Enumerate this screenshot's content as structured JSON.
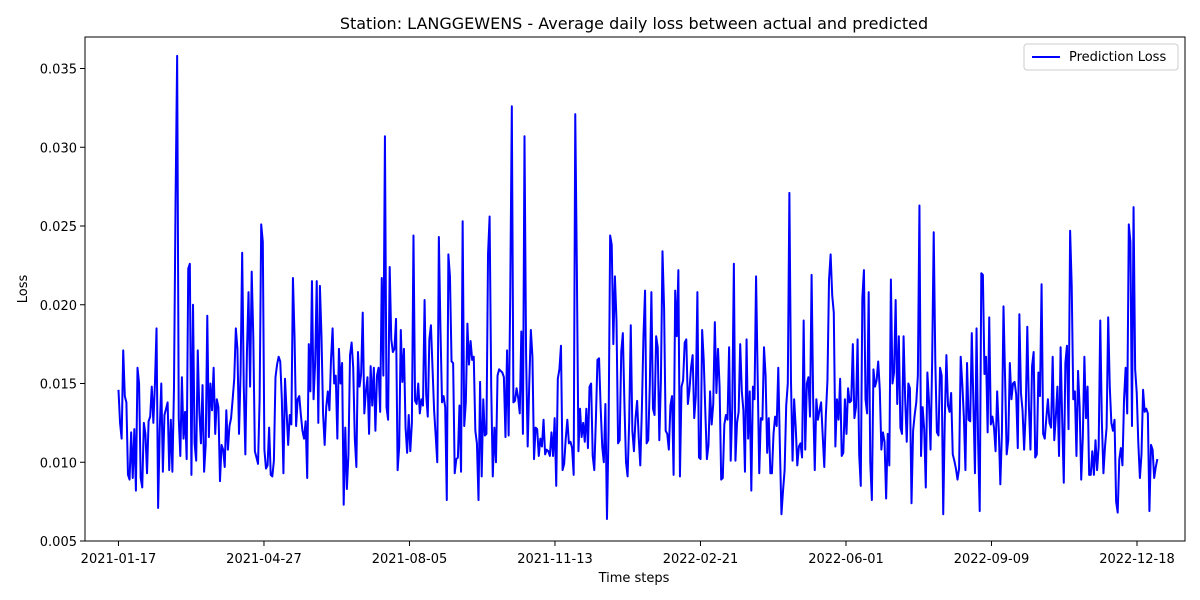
{
  "chart_data": {
    "type": "line",
    "title": "Station: LANGGEWENS - Average daily loss between actual and predicted",
    "xlabel": "Time steps",
    "ylabel": "Loss",
    "x_start": "2021-01-17",
    "x_end": "2023-01-01",
    "xlim": [
      "2020-12-25",
      "2023-01-20"
    ],
    "ylim": [
      0.005,
      0.037
    ],
    "x_ticks": [
      "2021-01-17",
      "2021-04-27",
      "2021-08-05",
      "2021-11-13",
      "2022-02-21",
      "2022-06-01",
      "2022-09-09",
      "2022-12-18"
    ],
    "y_ticks": [
      "0.005",
      "0.010",
      "0.015",
      "0.020",
      "0.025",
      "0.030",
      "0.035"
    ],
    "legend_position": "top-right",
    "grid": false,
    "series": [
      {
        "name": "Prediction Loss",
        "color": "#0000ff",
        "values": [
          0.0146,
          0.0125,
          0.0115,
          0.0171,
          0.0142,
          0.0138,
          0.0092,
          0.0089,
          0.0119,
          0.009,
          0.0121,
          0.0082,
          0.016,
          0.015,
          0.009,
          0.0084,
          0.0125,
          0.0118,
          0.0093,
          0.0126,
          0.0129,
          0.0148,
          0.0125,
          0.015,
          0.0185,
          0.0071,
          0.012,
          0.015,
          0.0094,
          0.013,
          0.0134,
          0.0138,
          0.0095,
          0.0127,
          0.0094,
          0.0147,
          0.0266,
          0.0358,
          0.0128,
          0.0104,
          0.0154,
          0.0115,
          0.0132,
          0.0102,
          0.0223,
          0.0226,
          0.0092,
          0.02,
          0.0112,
          0.0101,
          0.0171,
          0.0132,
          0.0112,
          0.0149,
          0.0094,
          0.0111,
          0.0193,
          0.0116,
          0.015,
          0.0133,
          0.016,
          0.0118,
          0.014,
          0.0135,
          0.0088,
          0.0111,
          0.0108,
          0.0097,
          0.0133,
          0.0108,
          0.0123,
          0.0128,
          0.014,
          0.0153,
          0.0185,
          0.0172,
          0.0118,
          0.0157,
          0.0233,
          0.0148,
          0.0105,
          0.017,
          0.0208,
          0.0148,
          0.0221,
          0.018,
          0.0107,
          0.0103,
          0.0099,
          0.014,
          0.0251,
          0.024,
          0.0108,
          0.0096,
          0.0098,
          0.0122,
          0.0092,
          0.0091,
          0.0101,
          0.0154,
          0.0162,
          0.0167,
          0.0164,
          0.014,
          0.0093,
          0.0153,
          0.0132,
          0.0111,
          0.013,
          0.0124,
          0.0217,
          0.018,
          0.0123,
          0.014,
          0.0142,
          0.013,
          0.012,
          0.0115,
          0.0126,
          0.009,
          0.0175,
          0.0145,
          0.0215,
          0.014,
          0.0163,
          0.0215,
          0.0125,
          0.0212,
          0.018,
          0.0131,
          0.0111,
          0.0135,
          0.0145,
          0.0133,
          0.0165,
          0.0185,
          0.015,
          0.0155,
          0.0115,
          0.0172,
          0.015,
          0.0163,
          0.0073,
          0.0122,
          0.0083,
          0.0105,
          0.0168,
          0.0176,
          0.016,
          0.0115,
          0.0097,
          0.017,
          0.0148,
          0.0156,
          0.0195,
          0.0131,
          0.0145,
          0.0154,
          0.0118,
          0.0161,
          0.0136,
          0.016,
          0.012,
          0.0155,
          0.016,
          0.0132,
          0.0217,
          0.0155,
          0.0307,
          0.0135,
          0.0127,
          0.0224,
          0.0178,
          0.017,
          0.0172,
          0.0191,
          0.0095,
          0.011,
          0.0184,
          0.0151,
          0.0172,
          0.0122,
          0.0106,
          0.013,
          0.0107,
          0.0125,
          0.0244,
          0.0139,
          0.0137,
          0.015,
          0.0131,
          0.014,
          0.0136,
          0.0203,
          0.0143,
          0.0129,
          0.0178,
          0.0187,
          0.016,
          0.0133,
          0.0117,
          0.01,
          0.0243,
          0.0185,
          0.0138,
          0.0142,
          0.0135,
          0.0076,
          0.0232,
          0.0218,
          0.0164,
          0.0163,
          0.0093,
          0.0102,
          0.0103,
          0.0136,
          0.0094,
          0.0253,
          0.0123,
          0.0138,
          0.0188,
          0.0162,
          0.0177,
          0.0165,
          0.0167,
          0.012,
          0.0112,
          0.0076,
          0.0151,
          0.0091,
          0.014,
          0.0117,
          0.0118,
          0.0232,
          0.0256,
          0.0148,
          0.0091,
          0.0122,
          0.01,
          0.0155,
          0.0159,
          0.0158,
          0.0157,
          0.0154,
          0.0116,
          0.0171,
          0.0117,
          0.0206,
          0.0326,
          0.0138,
          0.0139,
          0.0147,
          0.0141,
          0.0131,
          0.0183,
          0.0118,
          0.0307,
          0.0168,
          0.011,
          0.015,
          0.0184,
          0.0167,
          0.0102,
          0.0122,
          0.0121,
          0.0104,
          0.0115,
          0.011,
          0.0127,
          0.0105,
          0.0108,
          0.0107,
          0.0104,
          0.0119,
          0.0104,
          0.0128,
          0.0085,
          0.0153,
          0.0159,
          0.0174,
          0.0095,
          0.0099,
          0.0115,
          0.0127,
          0.0112,
          0.0113,
          0.0109,
          0.0092,
          0.0321,
          0.0223,
          0.0107,
          0.0134,
          0.0116,
          0.0125,
          0.0113,
          0.0134,
          0.0109,
          0.0148,
          0.015,
          0.0104,
          0.0095,
          0.0127,
          0.0165,
          0.0166,
          0.0135,
          0.011,
          0.01,
          0.0137,
          0.0064,
          0.012,
          0.0244,
          0.0238,
          0.0175,
          0.0218,
          0.019,
          0.0112,
          0.0114,
          0.017,
          0.0182,
          0.0137,
          0.01,
          0.0091,
          0.0126,
          0.0187,
          0.012,
          0.0107,
          0.0128,
          0.0139,
          0.0116,
          0.0098,
          0.0134,
          0.018,
          0.0209,
          0.0112,
          0.0114,
          0.0149,
          0.0208,
          0.0134,
          0.013,
          0.018,
          0.0173,
          0.0114,
          0.0152,
          0.0234,
          0.0198,
          0.012,
          0.0118,
          0.0108,
          0.0136,
          0.0142,
          0.0092,
          0.0209,
          0.018,
          0.0222,
          0.0091,
          0.0148,
          0.0152,
          0.0176,
          0.0178,
          0.0137,
          0.0146,
          0.016,
          0.0168,
          0.0128,
          0.0142,
          0.0208,
          0.0103,
          0.0102,
          0.0184,
          0.0165,
          0.0132,
          0.0102,
          0.0111,
          0.0145,
          0.0124,
          0.0137,
          0.0189,
          0.0144,
          0.0172,
          0.0148,
          0.0089,
          0.009,
          0.0124,
          0.013,
          0.0127,
          0.0173,
          0.0101,
          0.0135,
          0.0226,
          0.0101,
          0.0125,
          0.0132,
          0.0175,
          0.0145,
          0.0133,
          0.0094,
          0.0178,
          0.0115,
          0.0145,
          0.0082,
          0.0148,
          0.014,
          0.0218,
          0.0154,
          0.0093,
          0.0128,
          0.0127,
          0.0173,
          0.0155,
          0.0106,
          0.0128,
          0.0093,
          0.0093,
          0.0118,
          0.0129,
          0.0123,
          0.016,
          0.011,
          0.0067,
          0.0082,
          0.0095,
          0.0136,
          0.015,
          0.0271,
          0.0152,
          0.0101,
          0.014,
          0.0122,
          0.0098,
          0.011,
          0.0112,
          0.0103,
          0.019,
          0.0108,
          0.015,
          0.0154,
          0.0129,
          0.0219,
          0.0139,
          0.0095,
          0.014,
          0.0127,
          0.0133,
          0.0138,
          0.0117,
          0.0097,
          0.013,
          0.0152,
          0.0216,
          0.0232,
          0.0206,
          0.0195,
          0.011,
          0.014,
          0.0127,
          0.0153,
          0.0104,
          0.0106,
          0.014,
          0.0118,
          0.0147,
          0.0138,
          0.0139,
          0.0175,
          0.0128,
          0.0135,
          0.0178,
          0.0105,
          0.0085,
          0.0204,
          0.0222,
          0.014,
          0.0131,
          0.0208,
          0.01,
          0.0076,
          0.0159,
          0.0148,
          0.0152,
          0.0164,
          0.0146,
          0.0108,
          0.0119,
          0.0113,
          0.0077,
          0.0118,
          0.0098,
          0.0216,
          0.015,
          0.0157,
          0.0203,
          0.0137,
          0.018,
          0.0122,
          0.0118,
          0.018,
          0.014,
          0.0113,
          0.015,
          0.0147,
          0.0074,
          0.012,
          0.013,
          0.0138,
          0.0155,
          0.0263,
          0.0104,
          0.0135,
          0.0121,
          0.0084,
          0.0157,
          0.0139,
          0.0108,
          0.0163,
          0.0246,
          0.0164,
          0.0119,
          0.0117,
          0.016,
          0.0155,
          0.0067,
          0.0128,
          0.0168,
          0.0136,
          0.0132,
          0.0144,
          0.0105,
          0.0101,
          0.0096,
          0.0089,
          0.0096,
          0.0167,
          0.015,
          0.0129,
          0.0095,
          0.0163,
          0.0127,
          0.0126,
          0.0182,
          0.0138,
          0.0093,
          0.0185,
          0.0112,
          0.0069,
          0.022,
          0.0219,
          0.0156,
          0.0167,
          0.0119,
          0.0192,
          0.0124,
          0.0129,
          0.0122,
          0.0107,
          0.0145,
          0.0121,
          0.0086,
          0.0119,
          0.0199,
          0.0153,
          0.0105,
          0.0114,
          0.0163,
          0.014,
          0.015,
          0.0151,
          0.0143,
          0.0109,
          0.0194,
          0.0144,
          0.0133,
          0.0108,
          0.0132,
          0.0186,
          0.0136,
          0.0108,
          0.0161,
          0.017,
          0.0103,
          0.0105,
          0.0157,
          0.0142,
          0.0213,
          0.0118,
          0.0115,
          0.0128,
          0.014,
          0.0125,
          0.0122,
          0.0167,
          0.0114,
          0.0129,
          0.0148,
          0.0104,
          0.0173,
          0.0127,
          0.0087,
          0.0163,
          0.0174,
          0.0121,
          0.0247,
          0.0212,
          0.014,
          0.0145,
          0.0104,
          0.0158,
          0.0135,
          0.0089,
          0.0116,
          0.0167,
          0.0128,
          0.0148,
          0.0092,
          0.0092,
          0.0107,
          0.0092,
          0.0114,
          0.0095,
          0.011,
          0.019,
          0.0126,
          0.0093,
          0.011,
          0.0122,
          0.0192,
          0.0148,
          0.0125,
          0.012,
          0.0127,
          0.0075,
          0.0068,
          0.0102,
          0.0109,
          0.0098,
          0.014,
          0.016,
          0.0131,
          0.0251,
          0.024,
          0.0123,
          0.0262,
          0.0159,
          0.0144,
          0.0112,
          0.009,
          0.0105,
          0.0146,
          0.0132,
          0.0134,
          0.0131,
          0.0069,
          0.0111,
          0.0108,
          0.009,
          0.0097,
          0.0102
        ]
      }
    ]
  }
}
